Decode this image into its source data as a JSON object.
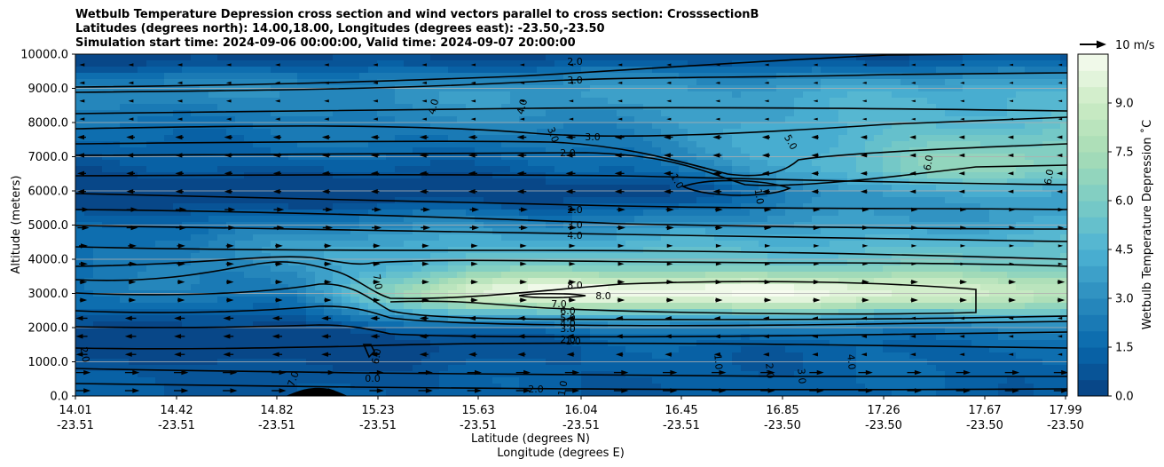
{
  "chart_data": {
    "type": "heatmap",
    "title_lines": [
      "Wetbulb Temperature Depression cross section and wind vectors parallel to cross section: CrosssectionB",
      "Latitudes (degrees north): 14.00,18.00, Longitudes (degrees east): -23.50,-23.50",
      "Simulation start time: 2024-09-06 00:00:00, Valid time: 2024-09-07 20:00:00"
    ],
    "ylabel": "Altitude (meters)",
    "xlabel_lines": [
      "Latitude (degrees N)",
      "Longitude (degrees E)"
    ],
    "ylim": [
      0,
      10000
    ],
    "yticks": [
      "0.0",
      "1000.0",
      "2000.0",
      "3000.0",
      "4000.0",
      "5000.0",
      "6000.0",
      "7000.0",
      "8000.0",
      "9000.0",
      "10000.0"
    ],
    "xticks": [
      {
        "lat": "14.01",
        "lon": "-23.51"
      },
      {
        "lat": "14.42",
        "lon": "-23.51"
      },
      {
        "lat": "14.82",
        "lon": "-23.51"
      },
      {
        "lat": "15.23",
        "lon": "-23.51"
      },
      {
        "lat": "15.63",
        "lon": "-23.51"
      },
      {
        "lat": "16.04",
        "lon": "-23.51"
      },
      {
        "lat": "16.45",
        "lon": "-23.51"
      },
      {
        "lat": "16.85",
        "lon": "-23.50"
      },
      {
        "lat": "17.26",
        "lon": "-23.50"
      },
      {
        "lat": "17.67",
        "lon": "-23.50"
      },
      {
        "lat": "17.99",
        "lon": "-23.50"
      }
    ],
    "colorbar": {
      "label": "Wetbulb Temperature Depression ˚C",
      "range": [
        0,
        10.5
      ],
      "ticks": [
        "0.0",
        "1.5",
        "3.0",
        "4.5",
        "6.0",
        "7.5",
        "9.0"
      ],
      "colormap": "GnBu_r"
    },
    "wind_key_label": "10 m/s",
    "contour_labels": [
      "2.0",
      "3.0",
      "4.0",
      "4.0",
      "3.0",
      "3.0",
      "2.0",
      "1.0",
      "1.0",
      "2.0",
      "3.0",
      "4.0",
      "7.0",
      "8.0",
      "8.0",
      "7.0",
      "6.0",
      "5.0",
      "4.0",
      "3.0",
      "2.0",
      "1.0",
      "6.0",
      "0.0",
      "1.0",
      "2.0",
      "1.0",
      "2.0",
      "3.0",
      "4.0",
      "5.0",
      "6.0",
      "6.0",
      "7.0",
      "2.0"
    ],
    "contour_levels": [
      1.0,
      2.0,
      3.0,
      4.0,
      5.0,
      6.0,
      7.0,
      8.0
    ],
    "grid": true
  },
  "colors": {
    "deep_blue": "#08468a",
    "mid_blue": "#2b8cbe",
    "light_blue": "#4eb3d3",
    "teal": "#7bccc4",
    "light_green": "#b7e3bc",
    "pale_green": "#e0f3db"
  }
}
